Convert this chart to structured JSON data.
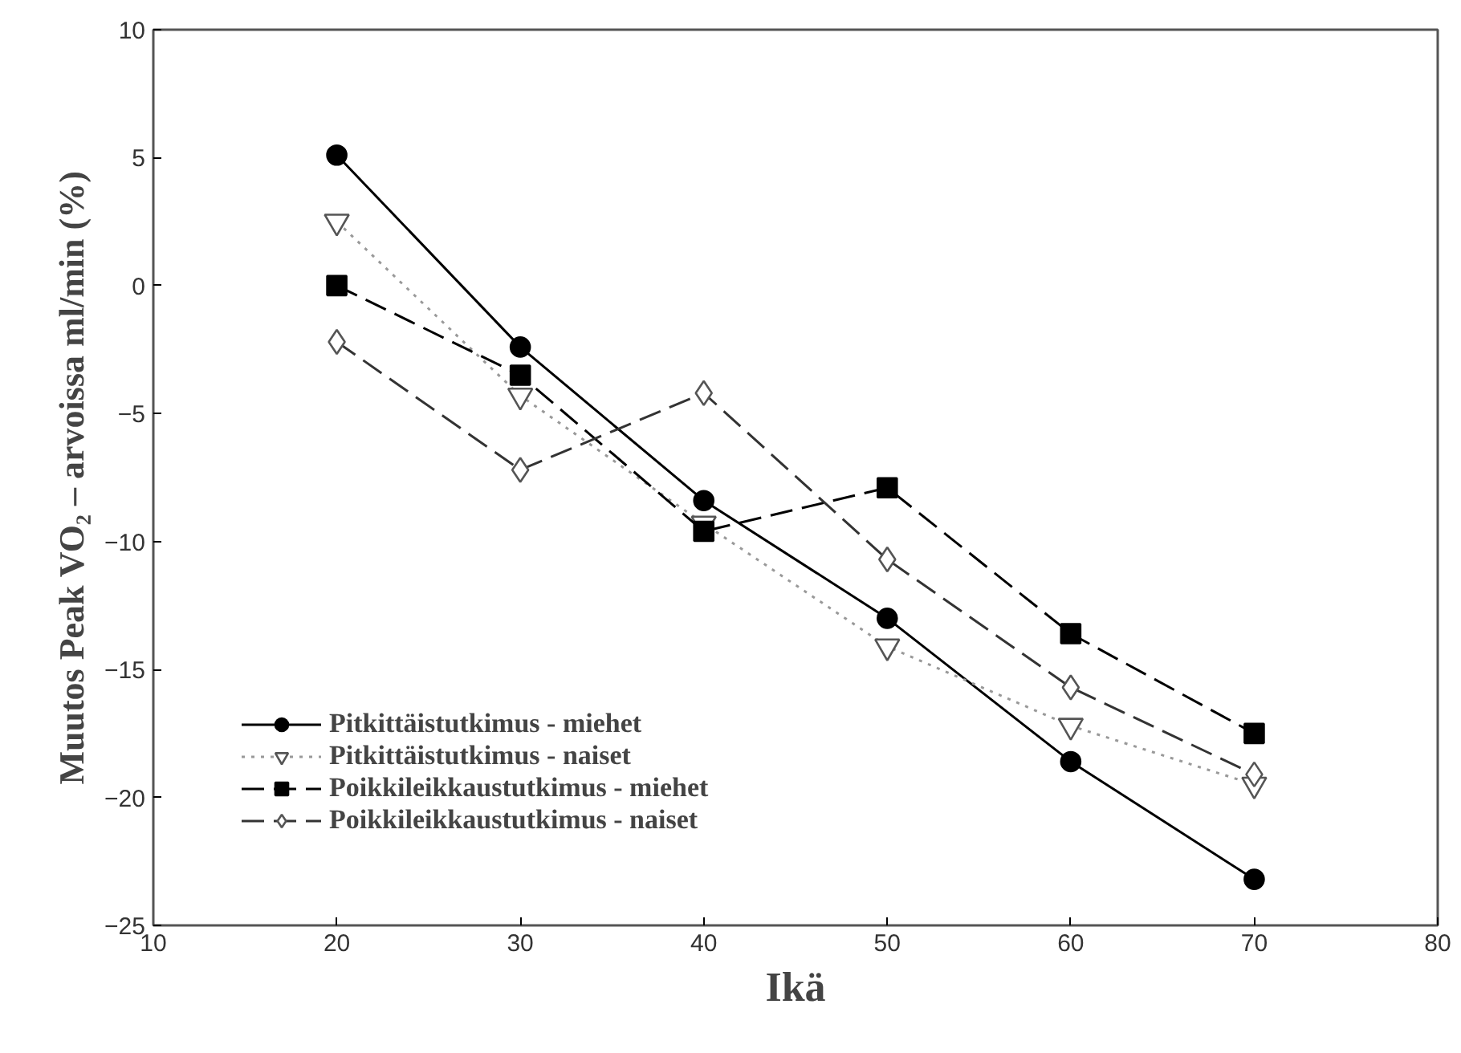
{
  "chart_data": {
    "type": "line",
    "xlabel": "Ikä",
    "ylabel": "Muutos Peak VO₂ – arvoissa ml/min (%)",
    "x": [
      20,
      30,
      40,
      50,
      60,
      70
    ],
    "series": [
      {
        "name": "Pitkittäistutkimus - miehet",
        "color": "#000000",
        "marker": "circle",
        "line_style": "solid",
        "values": [
          5.1,
          -2.4,
          -8.4,
          -13.0,
          -18.6,
          -23.2
        ]
      },
      {
        "name": "Pitkittäistutkimus - naiset",
        "color": "#999999",
        "marker": "triangle",
        "line_style": "dotted",
        "values": [
          2.5,
          -4.3,
          -9.3,
          -14.1,
          -17.2,
          -19.5
        ]
      },
      {
        "name": "Poikkileikkaustutkimus - miehet",
        "color": "#000000",
        "marker": "square",
        "line_style": "dashed",
        "values": [
          0.0,
          -3.5,
          -9.6,
          -7.9,
          -13.6,
          -17.5
        ]
      },
      {
        "name": "Poikkileikkaustutkimus - naiset",
        "color": "#333333",
        "marker": "diamond",
        "line_style": "dashed",
        "values": [
          -2.2,
          -7.2,
          -4.2,
          -10.7,
          -15.7,
          -19.1
        ]
      }
    ],
    "xlim": [
      10,
      80
    ],
    "xticks": [
      10,
      20,
      30,
      40,
      50,
      60,
      70,
      80
    ],
    "ylim": [
      -25,
      10
    ],
    "yticks": [
      -25,
      -20,
      -15,
      -10,
      -5,
      0,
      5,
      10
    ],
    "grid": false,
    "legend": "bottom left"
  }
}
